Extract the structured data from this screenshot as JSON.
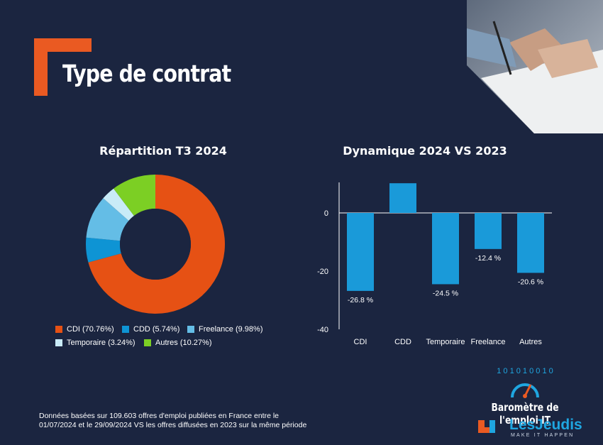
{
  "header": {
    "title": "Type de contrat"
  },
  "colors": {
    "background": "#1b2540",
    "accent": "#ea5a22",
    "cdi": "#e65114",
    "cdd": "#0e94d4",
    "freelance": "#64bde6",
    "temporaire": "#c9ebf7",
    "autres": "#7ccf24",
    "bars": "#1a9ad9"
  },
  "chart_data": [
    {
      "type": "pie",
      "title": "Répartition T3 2024",
      "labels": [
        "CDI",
        "CDD",
        "Freelance",
        "Temporaire",
        "Autres"
      ],
      "values": [
        70.76,
        5.74,
        9.98,
        3.24,
        10.27
      ],
      "legend": [
        "CDI (70.76%)",
        "CDD (5.74%)",
        "Freelance (9.98%)",
        "Temporaire (3.24%)",
        "Autres (10.27%)"
      ],
      "donut": true,
      "legend_position": "bottom"
    },
    {
      "type": "bar",
      "title": "Dynamique 2024 VS 2023",
      "categories": [
        "CDI",
        "CDD",
        "Temporaire",
        "Freelance",
        "Autres"
      ],
      "values": [
        -26.8,
        10.2,
        -24.5,
        -12.4,
        -20.6
      ],
      "data_labels": [
        "-26.8 %",
        "",
        "-24.5 %",
        "-12.4 %",
        "-20.6 %"
      ],
      "yticks": [
        0,
        -20,
        -40
      ],
      "ylim": [
        -40,
        10.5
      ],
      "grid": false
    }
  ],
  "footer": {
    "note_line1": "Données basées sur 109.603  offres d'emploi publiées en France entre le",
    "note_line2": "01/07/2024 et le 29/09/2024 VS les offres diffusées en 2023 sur la même période",
    "barometre": "Baromètre de l'emploi IT",
    "brand": "LesJeudis",
    "tagline": "MAKE IT HAPPEN",
    "binary_digits": "1 0 1 0 1 0 0 1 0"
  }
}
